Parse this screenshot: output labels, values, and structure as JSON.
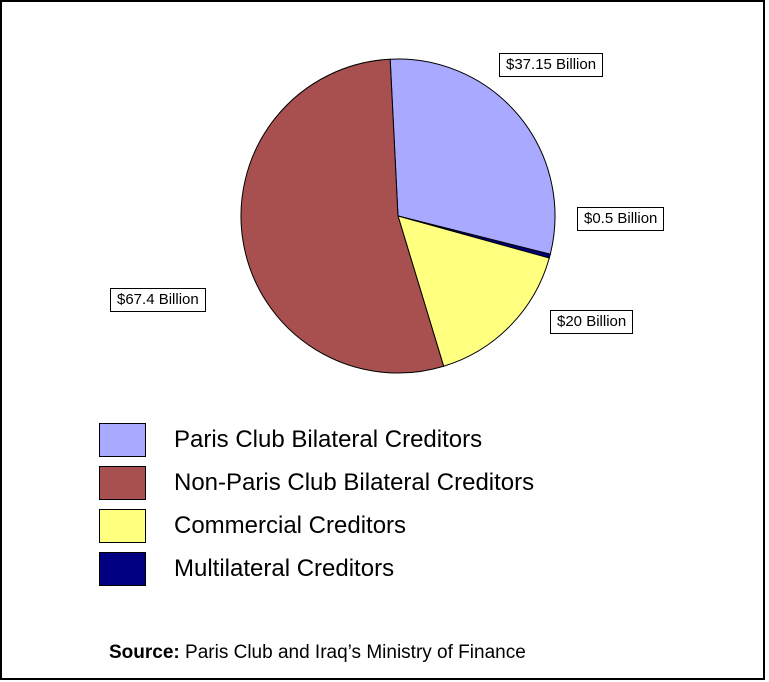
{
  "chart_data": {
    "type": "pie",
    "title": "",
    "series": [
      {
        "values": [
          37.15,
          0.5,
          20,
          67.4
        ],
        "categories": [
          "Paris Club Bilateral Creditors",
          "Multilateral Creditors",
          "Commercial Creditors",
          "Non-Paris Club Bilateral Creditors"
        ]
      }
    ],
    "data_labels": [
      "$37.15 Billion",
      "$0.5 Billion",
      "$20 Billion",
      "$67.4 Billion"
    ],
    "colors": [
      "#a9a9ff",
      "#000080",
      "#ffff80",
      "#a85050"
    ],
    "legend_position": "bottom"
  },
  "legend": [
    {
      "label": "Paris Club Bilateral Creditors",
      "color": "#a9a9ff"
    },
    {
      "label": "Non-Paris Club Bilateral Creditors",
      "color": "#a85050"
    },
    {
      "label": "Commercial Creditors",
      "color": "#ffff80"
    },
    {
      "label": "Multilateral Creditors",
      "color": "#000080"
    }
  ],
  "source": {
    "label": "Source:",
    "text": "Paris Club and Iraq’s Ministry of Finance"
  }
}
